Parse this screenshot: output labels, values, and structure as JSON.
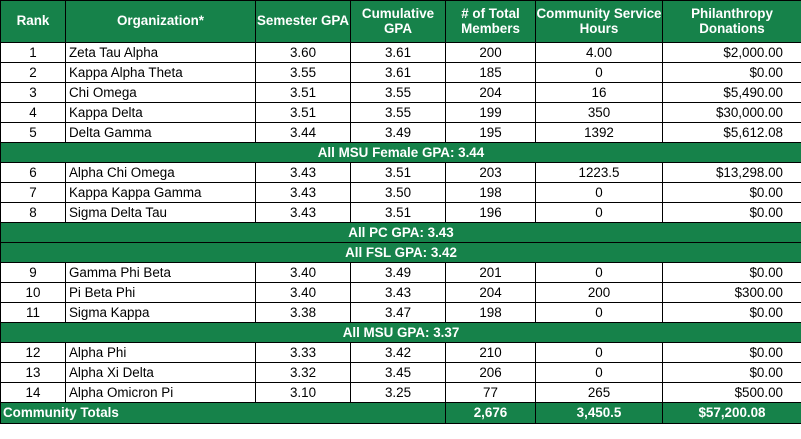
{
  "headers": {
    "rank": "Rank",
    "organization": "Organization*",
    "semester_gpa": "Semester GPA",
    "cumulative_gpa": "Cumulative GPA",
    "total_members": "# of Total Members",
    "service_hours": "Community Service Hours",
    "donations": "Philanthropy Donations"
  },
  "rows_group1": [
    {
      "rank": "1",
      "org": "Zeta Tau Alpha",
      "sem": "3.60",
      "cum": "3.61",
      "members": "200",
      "hours": "4.00",
      "donations": "$2,000.00"
    },
    {
      "rank": "2",
      "org": "Kappa Alpha Theta",
      "sem": "3.55",
      "cum": "3.61",
      "members": "185",
      "hours": "0",
      "donations": "$0.00"
    },
    {
      "rank": "3",
      "org": "Chi Omega",
      "sem": "3.51",
      "cum": "3.55",
      "members": "204",
      "hours": "16",
      "donations": "$5,490.00"
    },
    {
      "rank": "4",
      "org": "Kappa Delta",
      "sem": "3.51",
      "cum": "3.55",
      "members": "199",
      "hours": "350",
      "donations": "$30,000.00"
    },
    {
      "rank": "5",
      "org": "Delta Gamma",
      "sem": "3.44",
      "cum": "3.49",
      "members": "195",
      "hours": "1392",
      "donations": "$5,612.08"
    }
  ],
  "divider1": "All MSU Female GPA: 3.44",
  "rows_group2": [
    {
      "rank": "6",
      "org": "Alpha Chi Omega",
      "sem": "3.43",
      "cum": "3.51",
      "members": "203",
      "hours": "1223.5",
      "donations": "$13,298.00"
    },
    {
      "rank": "7",
      "org": "Kappa Kappa Gamma",
      "sem": "3.43",
      "cum": "3.50",
      "members": "198",
      "hours": "0",
      "donations": "$0.00"
    },
    {
      "rank": "8",
      "org": "Sigma Delta Tau",
      "sem": "3.43",
      "cum": "3.51",
      "members": "196",
      "hours": "0",
      "donations": "$0.00"
    }
  ],
  "divider2": "All PC GPA: 3.43",
  "divider3": "All FSL GPA: 3.42",
  "rows_group3": [
    {
      "rank": "9",
      "org": "Gamma Phi Beta",
      "sem": "3.40",
      "cum": "3.49",
      "members": "201",
      "hours": "0",
      "donations": "$0.00"
    },
    {
      "rank": "10",
      "org": "Pi Beta Phi",
      "sem": "3.40",
      "cum": "3.43",
      "members": "204",
      "hours": "200",
      "donations": "$300.00"
    },
    {
      "rank": "11",
      "org": "Sigma Kappa",
      "sem": "3.38",
      "cum": "3.47",
      "members": "198",
      "hours": "0",
      "donations": "$0.00"
    }
  ],
  "divider4": "All MSU GPA: 3.37",
  "rows_group4": [
    {
      "rank": "12",
      "org": "Alpha Phi",
      "sem": "3.33",
      "cum": "3.42",
      "members": "210",
      "hours": "0",
      "donations": "$0.00"
    },
    {
      "rank": "13",
      "org": "Alpha Xi Delta",
      "sem": "3.32",
      "cum": "3.45",
      "members": "206",
      "hours": "0",
      "donations": "$0.00"
    },
    {
      "rank": "14",
      "org": "Alpha Omicron Pi",
      "sem": "3.10",
      "cum": "3.25",
      "members": "77",
      "hours": "265",
      "donations": "$500.00"
    }
  ],
  "totals": {
    "label": "Community Totals",
    "members": "2,676",
    "hours": "3,450.5",
    "donations": "$57,200.08"
  },
  "colors": {
    "header_green": "#16824a",
    "header_text": "#ffffff",
    "border": "#000000"
  }
}
